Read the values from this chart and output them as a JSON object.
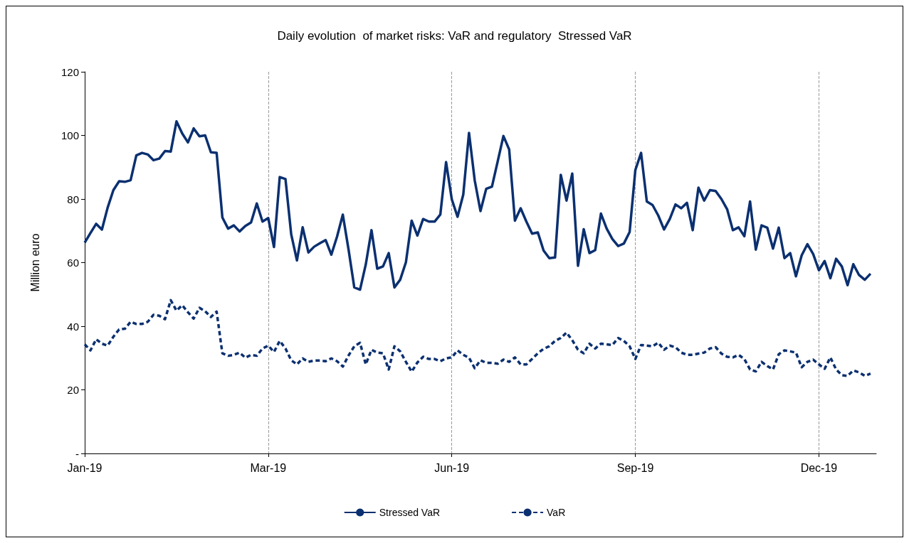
{
  "chart_data": {
    "type": "line",
    "title": "Daily evolution  of market risks: VaR and regulatory  Stressed VaR",
    "ylabel": "Million euro",
    "categories": [
      "Jan-19",
      null,
      null,
      null,
      null,
      null,
      null,
      null,
      null,
      null,
      null,
      null,
      null,
      null,
      null,
      null,
      null,
      null,
      null,
      null,
      null,
      null,
      null,
      null,
      null,
      null,
      null,
      null,
      null,
      null,
      null,
      null,
      "Mar-19",
      null,
      null,
      null,
      null,
      null,
      null,
      null,
      null,
      null,
      null,
      null,
      null,
      null,
      null,
      null,
      null,
      null,
      null,
      null,
      null,
      null,
      null,
      null,
      null,
      null,
      null,
      null,
      null,
      null,
      null,
      null,
      "Jun-19",
      null,
      null,
      null,
      null,
      null,
      null,
      null,
      null,
      null,
      null,
      null,
      null,
      null,
      null,
      null,
      null,
      null,
      null,
      null,
      null,
      null,
      null,
      null,
      null,
      null,
      null,
      null,
      null,
      null,
      null,
      null,
      "Sep-19",
      null,
      null,
      null,
      null,
      null,
      null,
      null,
      null,
      null,
      null,
      null,
      null,
      null,
      null,
      null,
      null,
      null,
      null,
      null,
      null,
      null,
      null,
      null,
      null,
      null,
      null,
      null,
      null,
      null,
      null,
      null,
      "Dec-19",
      null,
      null,
      null,
      null,
      null,
      null,
      null,
      null,
      null,
      null
    ],
    "ylim": [
      0,
      120
    ],
    "yticks": [
      {
        "value": 0,
        "label": "-"
      },
      20,
      40,
      60,
      80,
      100,
      120
    ],
    "grid": "x",
    "legend": "bottom",
    "series": [
      {
        "name": "Stressed VaR",
        "color": "#0b3070",
        "line_style": "solid",
        "values": [
          66.3,
          69.3,
          72.2,
          70.4,
          77.3,
          82.8,
          85.6,
          85.4,
          85.9,
          93.7,
          94.5,
          94.0,
          92.2,
          92.7,
          95.1,
          94.9,
          104.4,
          100.6,
          97.8,
          102.2,
          99.7,
          100.0,
          94.7,
          94.5,
          74.2,
          70.7,
          71.7,
          69.8,
          71.5,
          72.6,
          78.6,
          72.9,
          74.0,
          64.9,
          86.9,
          86.3,
          68.9,
          60.7,
          71.1,
          63.2,
          65.0,
          66.1,
          67.1,
          62.5,
          68.2,
          75.1,
          64.1,
          52.2,
          51.5,
          59.4,
          70.2,
          58.1,
          58.8,
          63.0,
          52.2,
          54.6,
          60.1,
          73.2,
          68.5,
          73.7,
          72.9,
          72.9,
          75.1,
          91.6,
          79.9,
          74.4,
          81.4,
          100.8,
          85.8,
          76.2,
          83.2,
          83.9,
          91.8,
          99.8,
          95.6,
          73.2,
          77.1,
          72.9,
          69.1,
          69.5,
          63.8,
          61.4,
          61.6,
          87.6,
          79.5,
          88.0,
          59.0,
          70.5,
          63.0,
          63.9,
          75.4,
          70.7,
          67.4,
          65.2,
          66.0,
          69.6,
          89.1,
          94.5,
          79.2,
          78.1,
          74.8,
          70.4,
          73.7,
          78.3,
          77.1,
          78.8,
          70.2,
          83.6,
          79.5,
          82.8,
          82.5,
          80.0,
          76.8,
          70.2,
          71.1,
          68.3,
          79.2,
          64.1,
          71.7,
          71.0,
          64.4,
          71.0,
          61.4,
          63.0,
          55.7,
          62.3,
          65.8,
          62.7,
          57.6,
          60.5,
          55.1,
          61.2,
          58.8,
          52.9,
          59.5,
          56.1,
          54.6,
          56.5,
          null
        ]
      },
      {
        "name": "VaR",
        "color": "#0b3070",
        "line_style": "dashed",
        "values": [
          34.3,
          32.4,
          35.9,
          34.5,
          33.9,
          36.7,
          39.0,
          39.2,
          41.4,
          40.7,
          40.7,
          41.4,
          43.6,
          43.3,
          42.2,
          48.2,
          44.9,
          46.6,
          44.4,
          42.4,
          45.8,
          44.7,
          42.9,
          44.6,
          31.5,
          30.7,
          31.0,
          31.7,
          30.1,
          31.0,
          30.7,
          33.0,
          33.9,
          31.9,
          35.4,
          33.0,
          29.3,
          28.0,
          29.9,
          28.8,
          29.2,
          29.2,
          29.0,
          29.9,
          29.0,
          27.3,
          30.8,
          33.7,
          34.8,
          28.0,
          32.6,
          31.7,
          31.5,
          26.4,
          33.7,
          32.1,
          28.8,
          25.7,
          28.6,
          30.4,
          29.7,
          29.7,
          29.0,
          29.9,
          30.2,
          32.4,
          31.0,
          30.1,
          26.8,
          29.3,
          28.5,
          28.5,
          28.2,
          29.5,
          28.8,
          30.2,
          28.0,
          28.0,
          29.7,
          31.5,
          32.9,
          33.7,
          35.4,
          36.3,
          38.0,
          35.6,
          32.6,
          31.5,
          34.5,
          33.0,
          34.5,
          34.3,
          34.1,
          36.3,
          35.4,
          33.7,
          29.7,
          34.1,
          33.9,
          33.7,
          34.8,
          32.6,
          33.9,
          33.4,
          31.7,
          31.0,
          31.0,
          31.4,
          31.7,
          33.0,
          33.4,
          31.4,
          30.4,
          30.2,
          31.0,
          29.7,
          26.4,
          25.8,
          28.8,
          27.5,
          26.4,
          31.2,
          32.4,
          32.1,
          31.7,
          27.1,
          28.8,
          29.5,
          28.0,
          26.6,
          30.2,
          26.4,
          24.6,
          24.4,
          26.1,
          25.5,
          24.4,
          25.1,
          null
        ]
      }
    ]
  }
}
